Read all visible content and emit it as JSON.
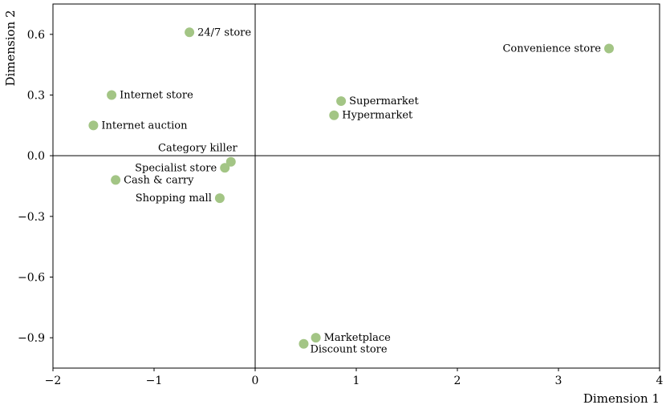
{
  "chart_data": {
    "type": "scatter",
    "xlabel": "Dimension 1",
    "ylabel": "Dimension 2",
    "xlim": [
      -2,
      4
    ],
    "ylim": [
      -1.05,
      0.75
    ],
    "xticks": [
      -2,
      -1,
      0,
      1,
      2,
      3,
      4
    ],
    "xtick_labels": [
      "−2",
      "−1",
      "0",
      "1",
      "2",
      "3",
      "4"
    ],
    "yticks": [
      -0.9,
      -0.6,
      -0.3,
      0.0,
      0.3,
      0.6
    ],
    "ytick_labels": [
      "−0.9",
      "−0.6",
      "−0.3",
      "0.0",
      "0.3",
      "0.6"
    ],
    "reference_lines": {
      "x": 0,
      "y": 0
    },
    "grid": false,
    "point_color": "#a3c585",
    "points": [
      {
        "label": "24/7 store",
        "x": -0.65,
        "y": 0.61,
        "label_pos": "right"
      },
      {
        "label": "Internet store",
        "x": -1.42,
        "y": 0.3,
        "label_pos": "right"
      },
      {
        "label": "Internet auction",
        "x": -1.6,
        "y": 0.15,
        "label_pos": "right"
      },
      {
        "label": "Category killer",
        "x": -0.24,
        "y": -0.03,
        "label_pos": "above-left"
      },
      {
        "label": "Specialist store",
        "x": -0.3,
        "y": -0.06,
        "label_pos": "left"
      },
      {
        "label": "Cash & carry",
        "x": -1.38,
        "y": -0.12,
        "label_pos": "right"
      },
      {
        "label": "Shopping mall",
        "x": -0.35,
        "y": -0.21,
        "label_pos": "left"
      },
      {
        "label": "Convenience store",
        "x": 3.5,
        "y": 0.53,
        "label_pos": "left"
      },
      {
        "label": "Supermarket",
        "x": 0.85,
        "y": 0.27,
        "label_pos": "right"
      },
      {
        "label": "Hypermarket",
        "x": 0.78,
        "y": 0.2,
        "label_pos": "right"
      },
      {
        "label": "Marketplace",
        "x": 0.6,
        "y": -0.9,
        "label_pos": "right"
      },
      {
        "label": "Discount store",
        "x": 0.48,
        "y": -0.93,
        "label_pos": "below-right"
      }
    ]
  }
}
